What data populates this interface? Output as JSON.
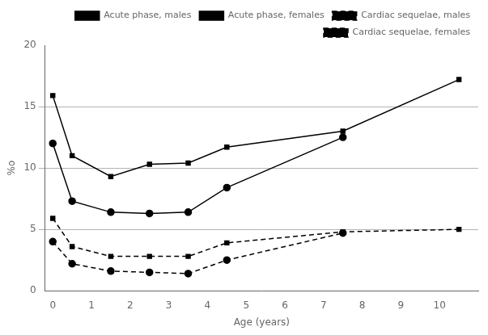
{
  "chart_data": {
    "type": "line",
    "xlabel": "Age (years)",
    "ylabel": "%o",
    "xlim": [
      -0.2,
      11
    ],
    "xticks": [
      0,
      1,
      2,
      3,
      4,
      5,
      6,
      7,
      8,
      9,
      10
    ],
    "ylim": [
      0,
      20
    ],
    "yticks": [
      0,
      5,
      10,
      15,
      20
    ],
    "grid": "y",
    "legend": "upper right",
    "series": [
      {
        "name": "Acute phase, males",
        "color": "#000000",
        "marker": "square",
        "line_style": "solid",
        "x": [
          0,
          0.5,
          1.5,
          2.5,
          3.5,
          4.5,
          7.5,
          10.5
        ],
        "values": [
          15.9,
          11.0,
          9.3,
          10.3,
          10.4,
          11.7,
          13.0,
          17.2
        ]
      },
      {
        "name": "Acute phase, females",
        "color": "#000000",
        "marker": "circle",
        "line_style": "solid",
        "x": [
          0,
          0.5,
          1.5,
          2.5,
          3.5,
          4.5,
          7.5
        ],
        "values": [
          12.0,
          7.3,
          6.4,
          6.3,
          6.4,
          8.4,
          12.5
        ]
      },
      {
        "name": "Cardiac sequelae, males",
        "color": "#000000",
        "marker": "square",
        "line_style": "dashed",
        "x": [
          0,
          0.5,
          1.5,
          2.5,
          3.5,
          4.5,
          7.5,
          10.5
        ],
        "values": [
          5.9,
          3.6,
          2.8,
          2.8,
          2.8,
          3.9,
          4.8,
          5.0
        ]
      },
      {
        "name": "Cardiac sequelae, females",
        "color": "#000000",
        "marker": "circle",
        "line_style": "dashed",
        "x": [
          0,
          0.5,
          1.5,
          2.5,
          3.5,
          4.5,
          7.5
        ],
        "values": [
          4.0,
          2.2,
          1.6,
          1.5,
          1.4,
          2.5,
          4.7
        ]
      }
    ]
  }
}
